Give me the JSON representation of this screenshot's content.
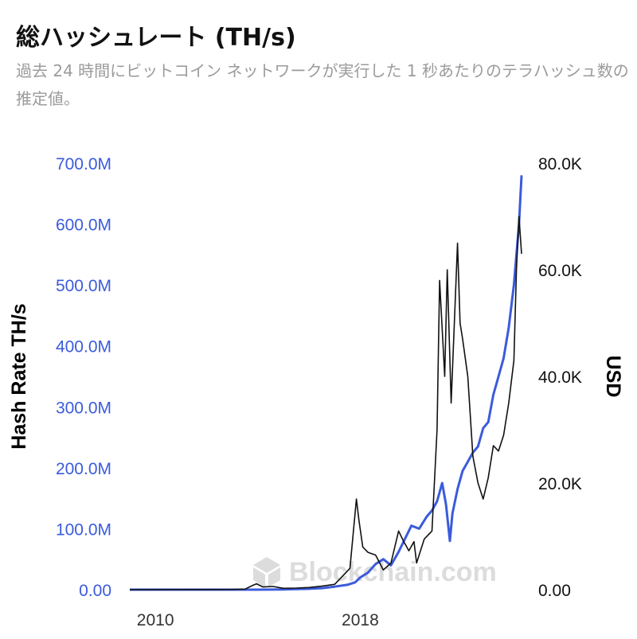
{
  "header": {
    "title": "総ハッシュレート (TH/s)",
    "subtitle": "過去 24 時間にビットコイン ネットワークが実行した 1 秒あたりのテラハッシュ数の推定値。"
  },
  "watermark": "Blockchain.com",
  "chart_data": {
    "type": "line",
    "title": "総ハッシュレート (TH/s)",
    "subtitle": "過去 24 時間にビットコイン ネットワークが実行した 1 秒あたりのテラハッシュ数の推定値。",
    "x_ticks": [
      "2010",
      "2018"
    ],
    "x_tick_values": [
      2010,
      2018
    ],
    "xlim": [
      2009.0,
      2024.3
    ],
    "y_left": {
      "label": "Hash Rate TH/s",
      "lim": [
        0,
        700000000
      ],
      "ticks": [
        0,
        100000000,
        200000000,
        300000000,
        400000000,
        500000000,
        600000000,
        700000000
      ],
      "tick_labels": [
        "0.00",
        "100.0M",
        "200.0M",
        "300.0M",
        "400.0M",
        "500.0M",
        "600.0M",
        "700.0M"
      ],
      "color": "#3b5bdb"
    },
    "y_right": {
      "label": "USD",
      "lim": [
        0,
        80000
      ],
      "ticks": [
        0,
        20000,
        40000,
        60000,
        80000
      ],
      "tick_labels": [
        "0.00",
        "20.0K",
        "40.0K",
        "60.0K",
        "80.0K"
      ],
      "color": "#111111"
    },
    "grid": false,
    "series": [
      {
        "axis": "left",
        "color": "#3b5bdb",
        "x": [
          2009.0,
          2013.0,
          2014.0,
          2015.0,
          2016.0,
          2016.5,
          2017.0,
          2017.5,
          2017.8,
          2018.0,
          2018.3,
          2018.6,
          2018.9,
          2019.2,
          2019.5,
          2019.8,
          2020.0,
          2020.3,
          2020.6,
          2020.8,
          2021.0,
          2021.2,
          2021.35,
          2021.5,
          2021.6,
          2021.8,
          2022.0,
          2022.2,
          2022.4,
          2022.6,
          2022.8,
          2023.0,
          2023.2,
          2023.4,
          2023.6,
          2023.8,
          2024.0,
          2024.2,
          2024.3
        ],
        "values": [
          0,
          0,
          50000,
          400000,
          1500000,
          2500000,
          5000000,
          8000000,
          12000000,
          20000000,
          28000000,
          42000000,
          50000000,
          40000000,
          62000000,
          88000000,
          105000000,
          100000000,
          120000000,
          130000000,
          145000000,
          175000000,
          140000000,
          80000000,
          125000000,
          165000000,
          195000000,
          210000000,
          225000000,
          235000000,
          265000000,
          275000000,
          320000000,
          350000000,
          380000000,
          430000000,
          500000000,
          600000000,
          680000000
        ]
      },
      {
        "axis": "right",
        "color": "#111111",
        "x": [
          2009.0,
          2013.0,
          2013.5,
          2013.8,
          2013.95,
          2014.2,
          2014.6,
          2015.0,
          2015.5,
          2016.0,
          2016.5,
          2017.0,
          2017.3,
          2017.6,
          2017.85,
          2017.95,
          2018.1,
          2018.3,
          2018.6,
          2018.9,
          2019.2,
          2019.5,
          2019.7,
          2019.9,
          2020.1,
          2020.2,
          2020.5,
          2020.8,
          2021.0,
          2021.1,
          2021.3,
          2021.4,
          2021.55,
          2021.65,
          2021.8,
          2021.9,
          2022.0,
          2022.2,
          2022.4,
          2022.6,
          2022.8,
          2023.0,
          2023.2,
          2023.4,
          2023.6,
          2023.8,
          2024.0,
          2024.1,
          2024.2,
          2024.3
        ],
        "values": [
          0,
          50,
          100,
          800,
          1100,
          500,
          600,
          250,
          300,
          400,
          650,
          1000,
          2500,
          4000,
          17000,
          13000,
          8000,
          7000,
          6500,
          3700,
          5000,
          11000,
          9000,
          7300,
          9000,
          5000,
          9500,
          11000,
          30000,
          58000,
          40000,
          60000,
          35000,
          47000,
          65000,
          50000,
          47000,
          40000,
          25000,
          20000,
          17000,
          21000,
          27000,
          26000,
          29000,
          35000,
          43000,
          60000,
          70000,
          63000
        ]
      }
    ]
  }
}
